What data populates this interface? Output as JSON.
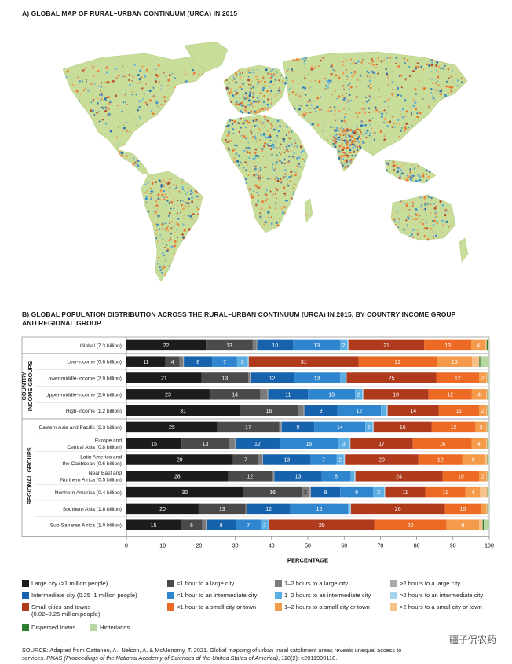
{
  "panel_a": {
    "title": "A) GLOBAL MAP OF RURAL–URBAN CONTINUUM (URCA) IN 2015"
  },
  "panel_b": {
    "title_line1": "B) GLOBAL POPULATION DISTRIBUTION ACROSS THE RURAL–URBAN CONTINUUM (URCA) IN 2015, BY COUNTRY INCOME GROUP",
    "title_line2": "AND REGIONAL GROUP"
  },
  "colors": {
    "large_city": "#1c1c1c",
    "lt1h_large": "#4a4a4a",
    "h12_large": "#7b7b7b",
    "gt2h_large": "#a9a9a9",
    "intermediate": "#1662ad",
    "lt1h_inter": "#2f86cf",
    "h12_inter": "#5aaee4",
    "gt2h_inter": "#a6d3ef",
    "small": "#b03a1c",
    "lt1h_small": "#ec6a24",
    "h12_small": "#f39a4b",
    "gt2h_small": "#f8c18a",
    "dispersed": "#2f7d32",
    "hinterlands": "#b8d6a2",
    "map_land": "#c9dd9a",
    "map_ocean": "#ffffff"
  },
  "chart_data": {
    "type": "bar",
    "orientation": "horizontal-stacked",
    "xlabel": "PERCENTAGE",
    "xlim": [
      0,
      100
    ],
    "xticks": [
      0,
      10,
      20,
      30,
      40,
      50,
      60,
      70,
      80,
      90,
      100
    ],
    "group_labels": [
      "COUNTRY INCOME GROUPS",
      "REGIONAL GROUPS"
    ],
    "categories": [
      "Global (7.3 billion)",
      "Low-income (0.6 billion)",
      "Lower-middle-income (2.9 billion)",
      "Upper-middle-income (2.6 billion)",
      "High-income (1.2 billion)",
      "Eastern Asia and Pacific (2.3 billion)",
      "Europe and\nCentral Asia (0.8 billion)",
      "Latin America and\nthe Caribbean (0.6 billion)",
      "Near East and\nNorthern Africa (0.5 billion)",
      "Northern America (0.4 billion)",
      "Southern Asia (1.8 billion)",
      "Sub-Saharan Africa (1.0 billion)"
    ],
    "series": [
      {
        "name": "Large city (>1 million people)",
        "key": "large_city",
        "values": [
          22,
          11,
          21,
          23,
          31,
          25,
          15,
          29,
          28,
          32,
          20,
          15
        ]
      },
      {
        "name": "<1 hour to a large city",
        "key": "lt1h_large",
        "values": [
          13,
          4,
          13,
          14,
          16,
          17,
          13,
          7,
          12,
          16,
          13,
          6
        ]
      },
      {
        "name": "1–2 hours to a large city",
        "key": "h12_large",
        "values": [
          1,
          1,
          0.5,
          2,
          1.5,
          0.5,
          1.5,
          1,
          0.5,
          2,
          0.3,
          1
        ]
      },
      {
        "name": ">2 hours to a large city",
        "key": "gt2h_large",
        "values": [
          0.2,
          0.2,
          0.2,
          0.2,
          0.2,
          0.2,
          0.2,
          0.2,
          0.2,
          0.5,
          0.1,
          0.2
        ]
      },
      {
        "name": "Intermediate city (0.25–1 million people)",
        "key": "intermediate",
        "values": [
          10,
          8,
          12,
          11,
          9,
          9,
          12,
          13,
          13,
          8,
          12,
          8
        ]
      },
      {
        "name": "<1 hour to an intermediate city",
        "key": "lt1h_inter",
        "values": [
          13,
          7,
          13,
          13,
          12,
          14,
          16,
          7,
          8,
          9,
          16,
          7
        ]
      },
      {
        "name": "1–2 hours to an intermediate city",
        "key": "h12_inter",
        "values": [
          2,
          3,
          1.5,
          2,
          1.5,
          2,
          3,
          2,
          1,
          3,
          0.5,
          2
        ]
      },
      {
        "name": ">2 hours to an intermediate city",
        "key": "gt2h_inter",
        "values": [
          0.3,
          0.3,
          0.3,
          0.3,
          0.3,
          0.3,
          0.3,
          0.3,
          0.3,
          0.3,
          0.3,
          0.3
        ]
      },
      {
        "name": "Small cities and towns\n(0.02–0.25 million people)",
        "key": "small",
        "values": [
          21,
          31,
          25,
          18,
          14,
          16,
          17,
          20,
          24,
          11,
          26,
          29
        ]
      },
      {
        "name": "<1 hour to a small city or town",
        "key": "lt1h_small",
        "values": [
          13,
          22,
          12,
          12,
          11,
          12,
          16,
          12,
          10,
          11,
          10,
          20
        ]
      },
      {
        "name": "1–2 hours to a small city or town",
        "key": "h12_small",
        "values": [
          4,
          10,
          2,
          4,
          2,
          3,
          4,
          6,
          2,
          4,
          1.5,
          9
        ]
      },
      {
        "name": ">2 hours to a small city or town",
        "key": "gt2h_small",
        "values": [
          0.3,
          2,
          0.3,
          0.3,
          0.3,
          0.3,
          0.3,
          0.8,
          0.3,
          2,
          0.3,
          1
        ]
      },
      {
        "name": "Dispersed towns",
        "key": "dispersed",
        "values": [
          0.3,
          0.3,
          0.3,
          0.3,
          0.3,
          0.3,
          0.3,
          0.3,
          0.3,
          0.3,
          0.3,
          0.3
        ]
      },
      {
        "name": "Hinterlands",
        "key": "hinterlands",
        "values": [
          0.4,
          2.5,
          0.2,
          0.2,
          0.2,
          0.2,
          0.2,
          0.2,
          0.2,
          0.2,
          0.2,
          1.5
        ]
      }
    ],
    "data_labels": [
      [
        22,
        13,
        null,
        null,
        10,
        13,
        2,
        null,
        21,
        13,
        4,
        null,
        null,
        null
      ],
      [
        11,
        4,
        null,
        null,
        8,
        7,
        3,
        null,
        31,
        22,
        10,
        null,
        null,
        null
      ],
      [
        21,
        13,
        null,
        null,
        12,
        13,
        null,
        null,
        25,
        12,
        2,
        null,
        null,
        null
      ],
      [
        23,
        14,
        null,
        null,
        11,
        13,
        2,
        null,
        18,
        12,
        4,
        null,
        null,
        null
      ],
      [
        31,
        16,
        null,
        null,
        9,
        12,
        null,
        null,
        14,
        11,
        2,
        null,
        null,
        null
      ],
      [
        25,
        17,
        null,
        null,
        9,
        14,
        2,
        null,
        16,
        12,
        3,
        null,
        null,
        null
      ],
      [
        15,
        13,
        null,
        null,
        12,
        16,
        3,
        null,
        17,
        16,
        4,
        null,
        null,
        null
      ],
      [
        29,
        7,
        null,
        null,
        13,
        7,
        2,
        null,
        20,
        12,
        6,
        null,
        null,
        null
      ],
      [
        28,
        12,
        null,
        null,
        13,
        8,
        null,
        null,
        24,
        10,
        2,
        null,
        null,
        null
      ],
      [
        32,
        16,
        2,
        null,
        8,
        9,
        3,
        null,
        11,
        11,
        4,
        null,
        null,
        null
      ],
      [
        20,
        13,
        null,
        null,
        12,
        16,
        null,
        null,
        26,
        10,
        null,
        null,
        null,
        null
      ],
      [
        15,
        6,
        null,
        null,
        8,
        7,
        2,
        null,
        29,
        20,
        9,
        null,
        null,
        null
      ]
    ]
  },
  "source": {
    "prefix": "SOURCE: Adapted from Cattaneo, A., Nelson, A. & McMenomy, T. 2021. Global mapping of urban–rural catchment areas reveals unequal access to",
    "line2_start": "services. ",
    "journal": "PNAS (Proceedings of the National Academy of Sciences of the United States of America)",
    "line2_end": ", 118(2): e2011990118."
  },
  "watermark": "疆子侃农药"
}
